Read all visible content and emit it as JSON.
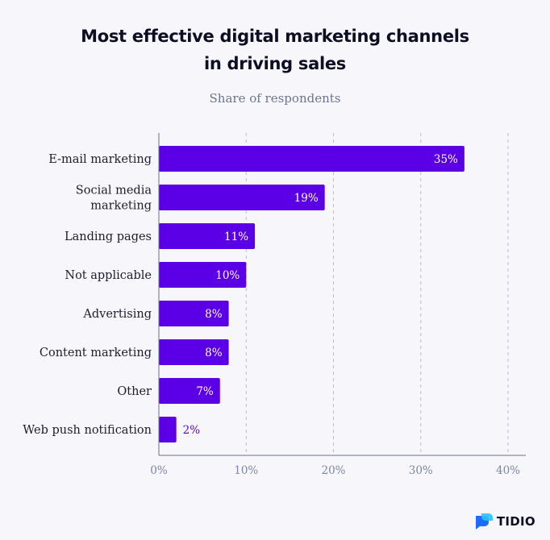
{
  "colors": {
    "bar": "#5b00e6",
    "bar_label_inside": "#ffffff",
    "bar_label_outside": "#5b00e6",
    "grid": "#b9bccb",
    "axis": "#6a6f85",
    "brand_blue": "#1e6bff",
    "brand_cyan": "#27c3ff"
  },
  "brand": {
    "text": "TIDIO",
    "icon": "tidio-logo-icon"
  },
  "chart_data": {
    "type": "bar",
    "orientation": "horizontal",
    "title": "Most effective digital marketing channels in driving sales",
    "title_lines": [
      "Most effective digital marketing channels",
      "in driving sales"
    ],
    "subtitle": "Share of respondents",
    "categories": [
      [
        "E-mail marketing"
      ],
      [
        "Social media",
        "marketing"
      ],
      [
        "Landing pages"
      ],
      [
        "Not applicable"
      ],
      [
        "Advertising"
      ],
      [
        "Content marketing"
      ],
      [
        "Other"
      ],
      [
        "Web push notification"
      ]
    ],
    "values": [
      35,
      19,
      11,
      10,
      8,
      8,
      7,
      2
    ],
    "value_labels": [
      "35%",
      "19%",
      "11%",
      "10%",
      "8%",
      "8%",
      "7%",
      "2%"
    ],
    "xlim": [
      0,
      40
    ],
    "xticks": [
      0,
      10,
      20,
      30,
      40
    ],
    "xtick_labels": [
      "0%",
      "10%",
      "20%",
      "30%",
      "40%"
    ],
    "grid": "vertical-dashed",
    "legend": "none"
  }
}
